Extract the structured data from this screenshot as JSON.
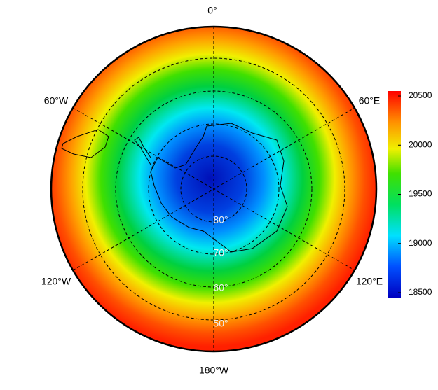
{
  "map": {
    "longitude_labels": [
      "0°",
      "60°W",
      "60°E",
      "120°W",
      "120°E",
      "180°W"
    ],
    "latitude_labels": [
      "80°",
      "70°",
      "60°",
      "50°"
    ]
  },
  "colorbar": {
    "range": [
      18450,
      20550
    ],
    "ticks": [
      18500,
      19000,
      19500,
      20000,
      20500
    ]
  }
}
